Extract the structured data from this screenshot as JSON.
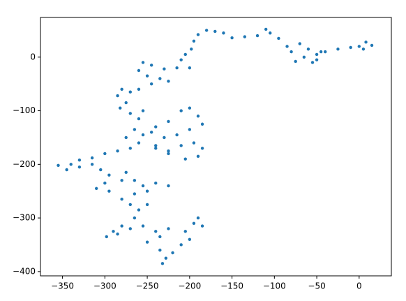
{
  "chart_data": {
    "type": "scatter",
    "color": "#1f77b4",
    "x": [
      0,
      8,
      15,
      5,
      -10,
      -25,
      -40,
      -50,
      -60,
      -70,
      -80,
      -65,
      -50,
      -45,
      -55,
      -75,
      -85,
      -95,
      -105,
      -110,
      -120,
      -135,
      -150,
      -160,
      -170,
      -180,
      -190,
      -195,
      -198,
      -205,
      -210,
      -200,
      -215,
      -230,
      -245,
      -255,
      -260,
      -250,
      -235,
      -225,
      -245,
      -260,
      -270,
      -280,
      -285,
      -275,
      -282,
      -270,
      -260,
      -255,
      -265,
      -255,
      -240,
      -225,
      -210,
      -200,
      -190,
      -185,
      -200,
      -215,
      -230,
      -245,
      -240,
      -225,
      -210,
      -195,
      -185,
      -190,
      -205,
      -225,
      -240,
      -260,
      -275,
      -270,
      -285,
      -300,
      -315,
      -330,
      -340,
      -355,
      -345,
      -330,
      -315,
      -305,
      -295,
      -300,
      -310,
      -295,
      -280,
      -275,
      -265,
      -255,
      -240,
      -225,
      -250,
      -265,
      -280,
      -270,
      -260,
      -250,
      -265,
      -280,
      -290,
      -298,
      -285,
      -270,
      -255,
      -240,
      -225,
      -235,
      -250,
      -235,
      -228,
      -232,
      -220,
      -210,
      -200,
      -205,
      -195,
      -190,
      -185
    ],
    "y": [
      20,
      28,
      22,
      15,
      18,
      15,
      10,
      5,
      15,
      25,
      10,
      0,
      -5,
      10,
      -10,
      -8,
      20,
      35,
      45,
      52,
      40,
      38,
      36,
      45,
      48,
      50,
      42,
      30,
      15,
      5,
      -5,
      -20,
      -20,
      -22,
      -15,
      -10,
      -25,
      -35,
      -40,
      -45,
      -50,
      -60,
      -65,
      -60,
      -72,
      -85,
      -95,
      -105,
      -115,
      -100,
      -135,
      -145,
      -130,
      -120,
      -100,
      -95,
      -110,
      -125,
      -135,
      -145,
      -150,
      -140,
      -165,
      -175,
      -165,
      -160,
      -170,
      -185,
      -190,
      -180,
      -170,
      -160,
      -150,
      -170,
      -175,
      -180,
      -188,
      -192,
      -200,
      -202,
      -210,
      -205,
      -200,
      -210,
      -220,
      -235,
      -245,
      -250,
      -230,
      -215,
      -230,
      -240,
      -235,
      -240,
      -250,
      -255,
      -265,
      -275,
      -285,
      -275,
      -300,
      -315,
      -325,
      -335,
      -330,
      -320,
      -315,
      -325,
      -320,
      -335,
      -345,
      -360,
      -375,
      -385,
      -365,
      -350,
      -340,
      -325,
      -310,
      -300,
      -315
    ],
    "xlim": [
      -376,
      38
    ],
    "ylim": [
      -408,
      74
    ],
    "xticks": [
      {
        "value": -350,
        "label": "−350"
      },
      {
        "value": -300,
        "label": "−300"
      },
      {
        "value": -250,
        "label": "−250"
      },
      {
        "value": -200,
        "label": "−200"
      },
      {
        "value": -150,
        "label": "−150"
      },
      {
        "value": -100,
        "label": "−100"
      },
      {
        "value": -50,
        "label": "−50"
      },
      0
    ],
    "yticks": [
      {
        "value": -400,
        "label": "−400"
      },
      {
        "value": -300,
        "label": "−300"
      },
      {
        "value": -200,
        "label": "−200"
      },
      {
        "value": -100,
        "label": "−100"
      },
      0
    ]
  }
}
